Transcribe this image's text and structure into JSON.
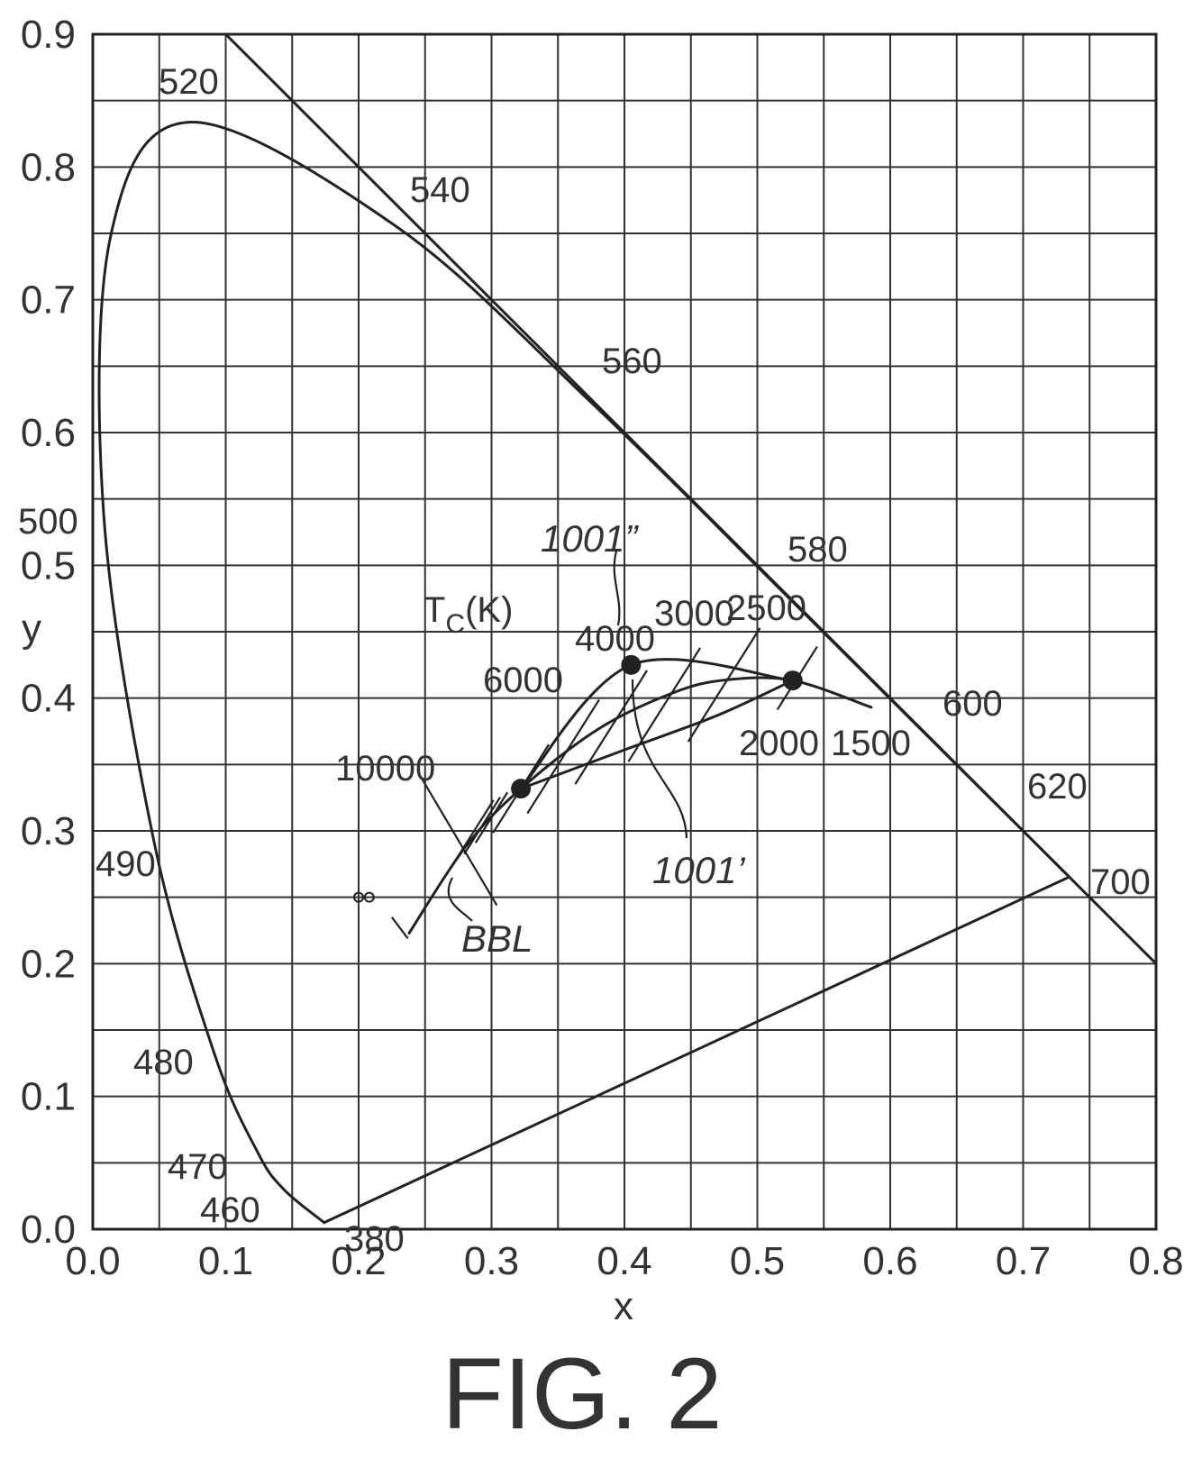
{
  "figure": {
    "fig_label": "FIG. 2",
    "x_label": "x",
    "y_label": "y",
    "x_ticks": [
      "0.0",
      "0.1",
      "0.2",
      "0.3",
      "0.4",
      "0.5",
      "0.6",
      "0.7",
      "0.8"
    ],
    "y_ticks": [
      "0.0",
      "0.1",
      "0.2",
      "0.3",
      "0.4",
      "0.5",
      "0.6",
      "0.7",
      "0.8",
      "0.9"
    ],
    "xlim": [
      0.0,
      0.8
    ],
    "ylim": [
      0.0,
      0.9
    ],
    "grid": true,
    "wavelength_labels": [
      "380",
      "460",
      "470",
      "480",
      "490",
      "500",
      "520",
      "540",
      "560",
      "580",
      "600",
      "620",
      "700"
    ],
    "cct_heading_main": "T",
    "cct_heading_sub": "C",
    "cct_heading_tail": "(K)",
    "cct_labels": [
      "10000",
      "6000",
      "4000",
      "3000",
      "2500",
      "2000",
      "1500"
    ],
    "reference_labels": [
      "1001”",
      "1001’",
      "BBL"
    ]
  },
  "chart_data": {
    "type": "scatter",
    "title": "",
    "xlabel": "x",
    "ylabel": "y",
    "xlim": [
      0.0,
      0.8
    ],
    "ylim": [
      0.0,
      0.9
    ],
    "grid": true,
    "series": [
      {
        "name": "",
        "kind": "spectral_locus",
        "x": [
          0.1741,
          0.144,
          0.1241,
          0.0913,
          0.0454,
          0.0082,
          0.0139,
          0.0743,
          0.2296,
          0.3731,
          0.5125,
          0.627,
          0.6915,
          0.7347
        ],
        "y": [
          0.005,
          0.0297,
          0.0578,
          0.1327,
          0.295,
          0.5384,
          0.7502,
          0.8338,
          0.7543,
          0.6245,
          0.4866,
          0.3725,
          0.3083,
          0.2653
        ]
      },
      {
        "name": "",
        "kind": "purple_line",
        "x": [
          0.1741,
          0.7347
        ],
        "y": [
          0.005,
          0.2653
        ]
      },
      {
        "name": "BBL",
        "kind": "blackbody_locus",
        "x": [
          0.238,
          0.2807,
          0.3221,
          0.3805,
          0.4369,
          0.4765,
          0.5266,
          0.5857
        ],
        "y": [
          0.223,
          0.2884,
          0.3318,
          0.3768,
          0.4041,
          0.4137,
          0.4133,
          0.3931
        ]
      },
      {
        "name": "",
        "kind": "CCT points",
        "x": [
          0.3221,
          0.405,
          0.5266
        ],
        "y": [
          0.3318,
          0.425,
          0.4133
        ]
      }
    ]
  }
}
